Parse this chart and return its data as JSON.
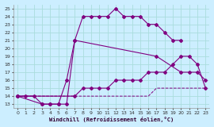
{
  "background_color": "#cceeff",
  "line_color": "#800080",
  "xlim": [
    -0.5,
    23.5
  ],
  "ylim": [
    12.5,
    25.5
  ],
  "xlabel": "Windchill (Refroidissement éolien,°C)",
  "xticks": [
    0,
    1,
    2,
    3,
    4,
    5,
    6,
    7,
    8,
    9,
    10,
    11,
    12,
    13,
    14,
    15,
    16,
    17,
    18,
    19,
    20,
    21,
    22,
    23
  ],
  "yticks": [
    13,
    14,
    15,
    16,
    17,
    18,
    19,
    20,
    21,
    22,
    23,
    24,
    25
  ],
  "grid_color": "#aadddd",
  "curve1_x": [
    0,
    1,
    2,
    3,
    4,
    5,
    6,
    7,
    8,
    9,
    10,
    11,
    12,
    13,
    14,
    15,
    16,
    17,
    18,
    19,
    20
  ],
  "curve1_y": [
    14,
    14,
    14,
    13,
    13,
    13,
    13,
    21,
    24,
    24,
    24,
    24,
    25,
    24,
    24,
    24,
    23,
    23,
    22,
    21,
    21
  ],
  "curve2_x": [
    0,
    3,
    4,
    5,
    6,
    7,
    17,
    20,
    21,
    22,
    23
  ],
  "curve2_y": [
    14,
    13,
    13,
    13,
    16,
    21,
    19,
    17,
    17,
    17,
    16
  ],
  "curve3_x": [
    0,
    7,
    8,
    9,
    10,
    11,
    12,
    13,
    14,
    15,
    16,
    17,
    18,
    19,
    20,
    21,
    22,
    23
  ],
  "curve3_y": [
    14,
    14,
    15,
    15,
    15,
    15,
    16,
    16,
    16,
    16,
    17,
    17,
    17,
    18,
    19,
    19,
    18,
    15
  ],
  "curve4_x": [
    0,
    7,
    8,
    9,
    10,
    11,
    12,
    13,
    14,
    15,
    16,
    17,
    18,
    19,
    20,
    21,
    22,
    23
  ],
  "curve4_y": [
    14,
    14,
    14,
    14,
    14,
    14,
    14,
    14,
    14,
    14,
    14,
    15,
    15,
    15,
    15,
    15,
    15,
    15
  ]
}
